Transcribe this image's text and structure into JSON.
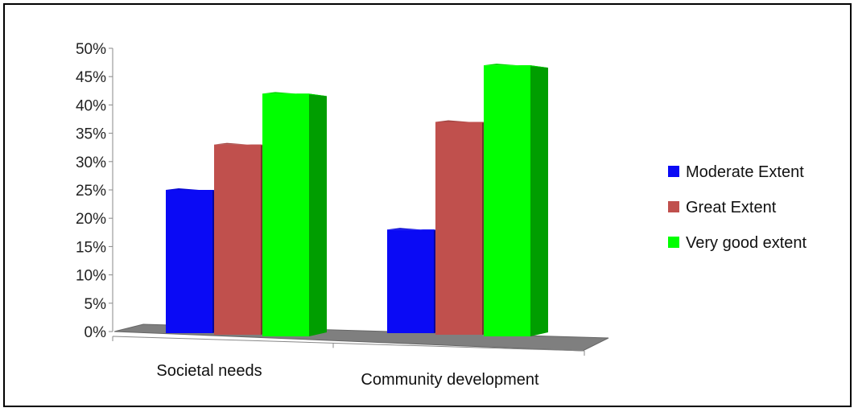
{
  "chart_data": {
    "type": "bar",
    "categories": [
      "Societal needs",
      "Community development"
    ],
    "series": [
      {
        "name": "Moderate Extent",
        "values": [
          25,
          18
        ],
        "color": "#0A0AF5"
      },
      {
        "name": "Great Extent",
        "values": [
          33,
          37
        ],
        "color": "#C0504D"
      },
      {
        "name": "Very good extent",
        "values": [
          42,
          47
        ],
        "color": "#00FF00"
      }
    ],
    "ylim": [
      0,
      50
    ],
    "yticks": [
      "0%",
      "5%",
      "10%",
      "15%",
      "20%",
      "25%",
      "30%",
      "35%",
      "40%",
      "45%",
      "50%"
    ],
    "legend_position": "right",
    "grid": false,
    "style": "3d-columns"
  }
}
